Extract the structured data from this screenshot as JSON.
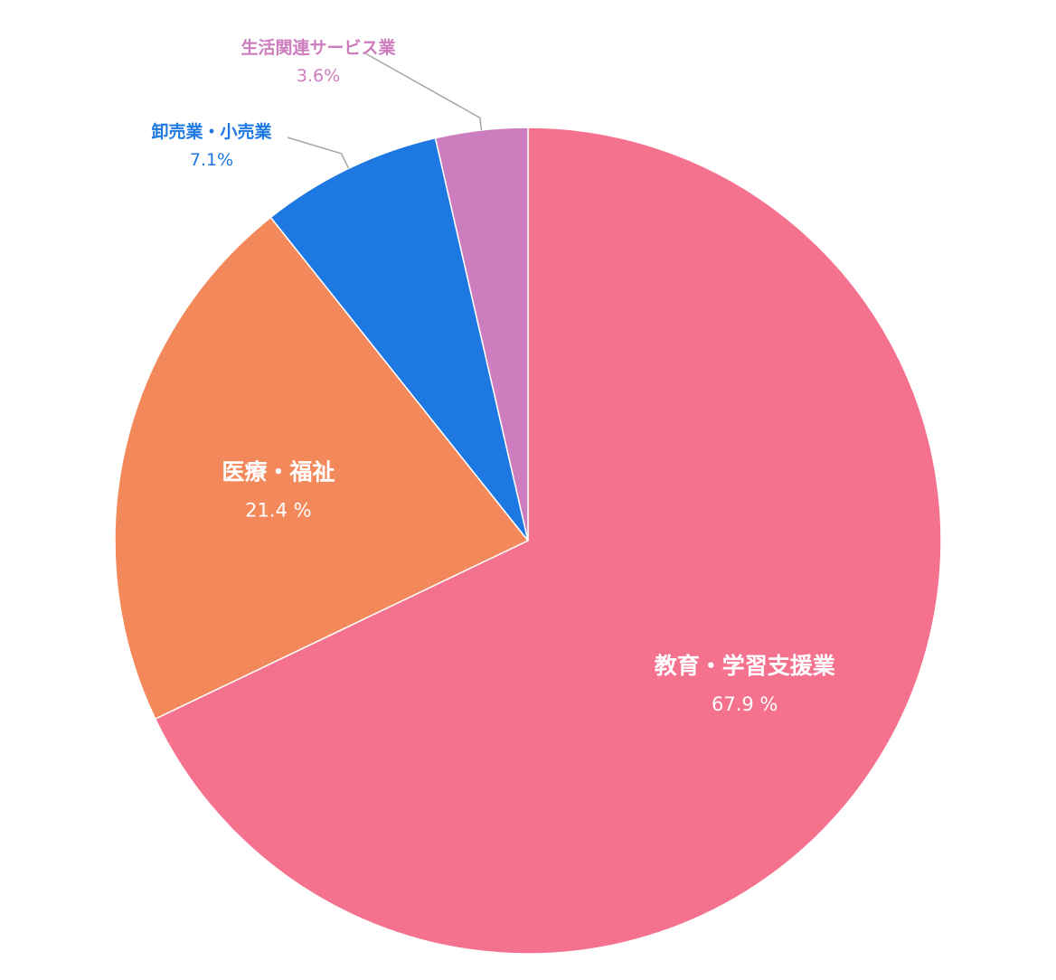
{
  "chart_data": {
    "type": "pie",
    "start_angle_deg": 0,
    "direction": "clockwise",
    "slices": [
      {
        "label": "教育・学習支援業",
        "value": 67.9,
        "value_label": "67.9 %",
        "color": "#f5728e",
        "label_position": "inside"
      },
      {
        "label": "医療・福祉",
        "value": 21.4,
        "value_label": "21.4 %",
        "color": "#f3885a",
        "label_position": "inside"
      },
      {
        "label": "卸売業・小売業",
        "value": 7.1,
        "value_label": "7.1%",
        "color": "#1e78e2",
        "label_position": "outside"
      },
      {
        "label": "生活関連サービス業",
        "value": 3.6,
        "value_label": "3.6%",
        "color": "#cd7dbd",
        "label_position": "outside"
      }
    ]
  }
}
